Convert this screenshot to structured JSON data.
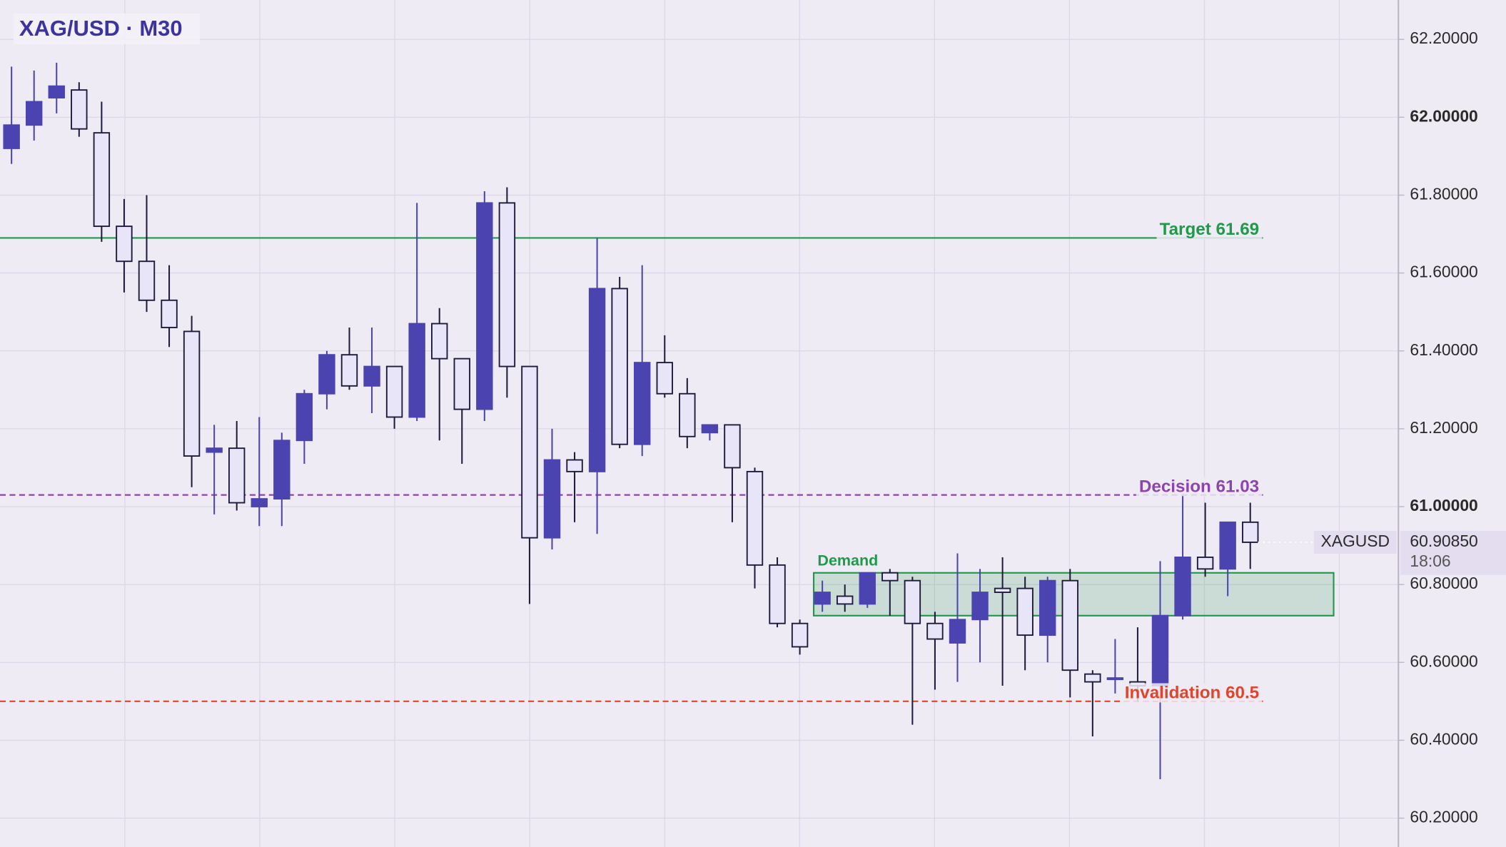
{
  "chart_data": {
    "type": "candlestick",
    "title": "XAG/USD · M30",
    "symbol": "XAGUSD",
    "open": [
      61.92,
      61.98,
      62.05,
      62.07,
      61.96,
      61.72,
      61.63,
      61.53,
      61.45,
      61.14,
      61.15,
      61.0,
      61.02,
      61.17,
      61.29,
      61.39,
      61.31,
      61.36,
      61.23,
      61.47,
      61.38,
      61.25,
      61.78,
      61.36,
      60.92,
      61.12,
      61.09,
      61.56,
      61.16,
      61.37,
      61.29,
      61.19,
      61.21,
      61.09,
      60.85,
      60.7,
      60.75,
      60.77,
      60.75,
      60.83,
      60.81,
      60.7,
      60.65,
      60.71,
      60.79,
      60.79,
      60.67,
      60.81,
      60.57,
      60.56,
      60.55,
      60.54,
      60.72,
      60.87,
      60.84,
      60.96
    ],
    "high": [
      62.13,
      62.12,
      62.14,
      62.09,
      62.04,
      61.79,
      61.8,
      61.62,
      61.49,
      61.21,
      61.22,
      61.23,
      61.19,
      61.3,
      61.4,
      61.46,
      61.46,
      61.36,
      61.78,
      61.51,
      61.38,
      61.81,
      61.82,
      61.36,
      61.2,
      61.14,
      61.69,
      61.59,
      61.62,
      61.44,
      61.33,
      61.21,
      61.21,
      61.1,
      60.87,
      60.71,
      60.81,
      60.8,
      60.83,
      60.84,
      60.82,
      60.73,
      60.88,
      60.84,
      60.87,
      60.82,
      60.82,
      60.84,
      60.58,
      60.66,
      60.69,
      60.86,
      61.03,
      61.01,
      60.96,
      61.01
    ],
    "low": [
      61.88,
      61.94,
      62.01,
      61.95,
      61.68,
      61.55,
      61.5,
      61.41,
      61.05,
      60.98,
      60.99,
      60.95,
      60.95,
      61.11,
      61.25,
      61.3,
      61.24,
      61.2,
      61.22,
      61.17,
      61.11,
      61.22,
      61.28,
      60.75,
      60.89,
      60.96,
      60.93,
      61.15,
      61.13,
      61.28,
      61.15,
      61.17,
      60.96,
      60.79,
      60.69,
      60.62,
      60.73,
      60.73,
      60.74,
      60.72,
      60.44,
      60.53,
      60.55,
      60.6,
      60.54,
      60.58,
      60.6,
      60.51,
      60.41,
      60.52,
      60.5,
      60.3,
      60.71,
      60.82,
      60.77,
      60.84
    ],
    "close": [
      61.98,
      62.04,
      62.08,
      61.97,
      61.72,
      61.63,
      61.53,
      61.46,
      61.13,
      61.15,
      61.01,
      61.02,
      61.17,
      61.29,
      61.39,
      61.31,
      61.36,
      61.23,
      61.47,
      61.38,
      61.25,
      61.78,
      61.36,
      60.92,
      61.12,
      61.09,
      61.56,
      61.16,
      61.37,
      61.29,
      61.18,
      61.21,
      61.1,
      60.85,
      60.7,
      60.64,
      60.78,
      60.75,
      60.83,
      60.81,
      60.7,
      60.66,
      60.71,
      60.78,
      60.78,
      60.67,
      60.81,
      60.58,
      60.55,
      60.56,
      60.54,
      60.72,
      60.87,
      60.84,
      60.96,
      60.9085
    ],
    "ylim": [
      60.126,
      62.301
    ],
    "yticks": [
      {
        "value": 60.2,
        "label": "60.20000"
      },
      {
        "value": 60.4,
        "label": "60.40000"
      },
      {
        "value": 60.6,
        "label": "60.60000"
      },
      {
        "value": 60.8,
        "label": "60.80000"
      },
      {
        "value": 61.0,
        "label": "61.00000"
      },
      {
        "value": 61.2,
        "label": "61.20000"
      },
      {
        "value": 61.4,
        "label": "61.40000"
      },
      {
        "value": 61.6,
        "label": "61.60000"
      },
      {
        "value": 61.8,
        "label": "61.80000"
      },
      {
        "value": 62.0,
        "label": "62.00000"
      },
      {
        "value": 62.2,
        "label": "62.20000"
      }
    ],
    "grid": true,
    "colors": {
      "up": "#4b44b0",
      "down": "#e7e5f7"
    },
    "last_price": {
      "value": 60.9085,
      "label": "60.90850"
    },
    "countdown": "18:06",
    "levels": [
      {
        "label": "Target 61.69",
        "value": 61.69,
        "color": "#1f9a4a",
        "style": "solid"
      },
      {
        "label": "Decision 61.03",
        "value": 61.03,
        "color": "#8e44ad",
        "style": "dashed"
      },
      {
        "label": "Invalidation 60.5",
        "value": 60.5,
        "color": "#e0452c",
        "style": "dashed"
      }
    ],
    "zone": {
      "label": "Demand",
      "from": 60.72,
      "to": 60.83,
      "color": "#1f9a4a"
    }
  }
}
